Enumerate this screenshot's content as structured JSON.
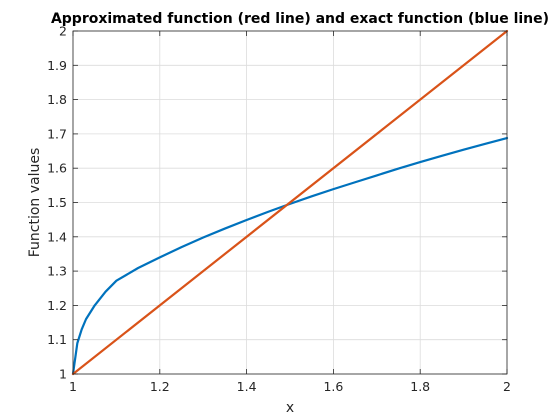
{
  "chart_data": {
    "type": "line",
    "title": "Approximated function (red line) and exact function (blue line)",
    "xlabel": "x",
    "ylabel": "Function values",
    "xlim": [
      1,
      2
    ],
    "ylim": [
      1,
      2
    ],
    "xticks": [
      1,
      1.2,
      1.4,
      1.6,
      1.8,
      2
    ],
    "xtick_labels": [
      "1",
      "1.2",
      "1.4",
      "1.6",
      "1.8",
      "2"
    ],
    "yticks": [
      1,
      1.1,
      1.2,
      1.3,
      1.4,
      1.5,
      1.6,
      1.7,
      1.8,
      1.9,
      2
    ],
    "ytick_labels": [
      "1",
      "1.1",
      "1.2",
      "1.3",
      "1.4",
      "1.5",
      "1.6",
      "1.7",
      "1.8",
      "1.9",
      "2"
    ],
    "grid": true,
    "series": [
      {
        "color": "#0072BD",
        "x": [
          1.0,
          1.01,
          1.02,
          1.03,
          1.05,
          1.075,
          1.1,
          1.15,
          1.2,
          1.25,
          1.3,
          1.35,
          1.4,
          1.45,
          1.5,
          1.55,
          1.6,
          1.65,
          1.7,
          1.75,
          1.8,
          1.85,
          1.9,
          1.95,
          2.0
        ],
        "y": [
          1.0,
          1.09,
          1.13,
          1.16,
          1.2,
          1.24,
          1.272,
          1.309,
          1.34,
          1.37,
          1.398,
          1.424,
          1.449,
          1.473,
          1.496,
          1.518,
          1.539,
          1.559,
          1.579,
          1.599,
          1.618,
          1.636,
          1.654,
          1.671,
          1.688
        ]
      },
      {
        "color": "#D95319",
        "x": [
          1.0,
          2.0
        ],
        "y": [
          1.0,
          2.0
        ]
      }
    ]
  }
}
